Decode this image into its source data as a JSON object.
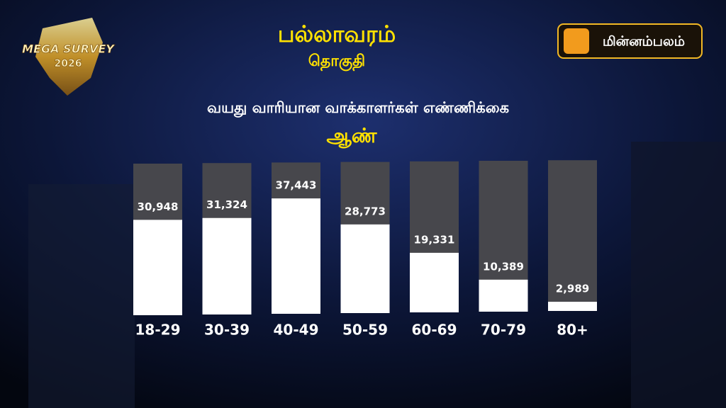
{
  "logos": {
    "left": [
      "MEGA SURVEY",
      "2026"
    ],
    "right": "மின்னம்பலம்"
  },
  "chart_data": {
    "type": "bar",
    "title": "பல்லாவரம்",
    "subtitle": "தொகுதி",
    "heading": "வயது வாரியான வாக்காளர்கள் எண்ணிக்கை",
    "categories": [
      "18-29",
      "30-39",
      "40-49",
      "50-59",
      "60-69",
      "70-79",
      "80+"
    ],
    "series": [
      {
        "name": "ஆண்",
        "color": "#ffffff",
        "values": [
          30948,
          31324,
          37443,
          28773,
          19331,
          10389,
          2989
        ],
        "value_labels": [
          "30,948",
          "31,324",
          "37,443",
          "28,773",
          "19,331",
          "10,389",
          "2,989"
        ]
      }
    ],
    "track_color": "#47474c"
  }
}
